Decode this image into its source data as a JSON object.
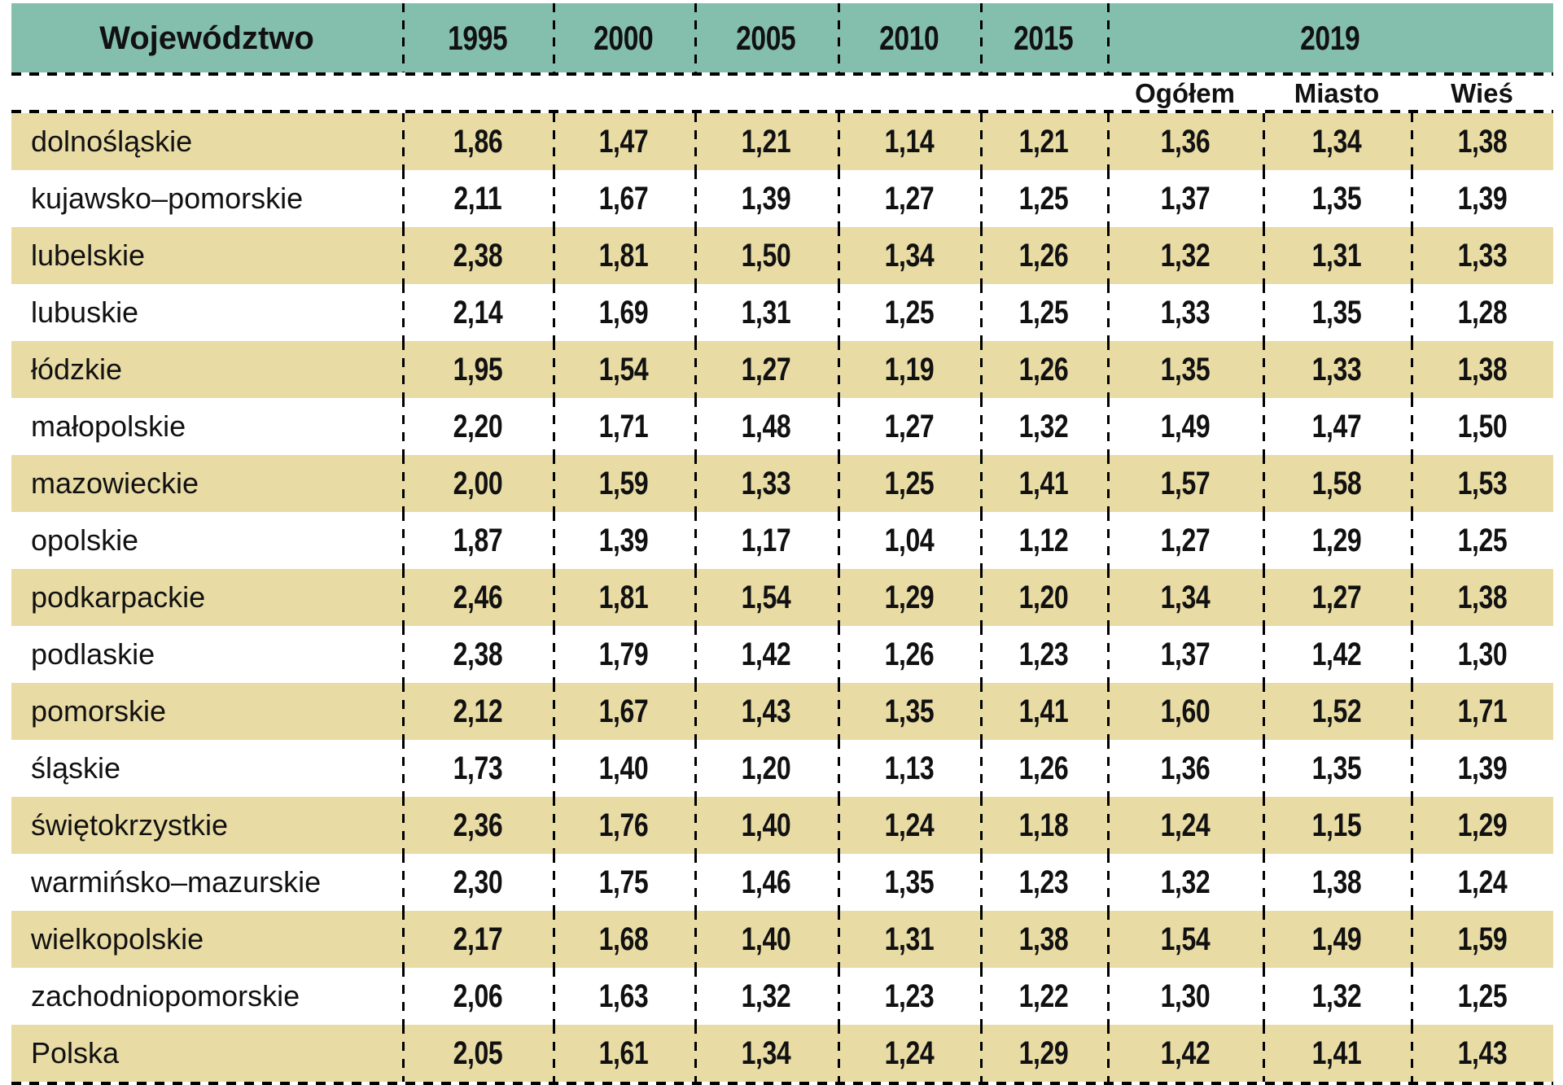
{
  "header": {
    "region_label": "Województwo",
    "years": [
      "1995",
      "2000",
      "2005",
      "2010",
      "2015"
    ],
    "group_2019_label": "2019",
    "subcolumns": [
      "Ogółem",
      "Miasto",
      "Wieś"
    ]
  },
  "colors": {
    "header_bg": "#84bfae",
    "stripe_bg": "#e8dba4",
    "plain_bg": "#ffffff",
    "line": "#000000",
    "text": "#111111"
  },
  "chart_data": {
    "type": "table",
    "columns": [
      "Województwo",
      "1995",
      "2000",
      "2005",
      "2010",
      "2015",
      "2019 Ogółem",
      "2019 Miasto",
      "2019 Wieś"
    ],
    "decimal_separator": ",",
    "rows": [
      {
        "region": "dolnośląskie",
        "values": [
          1.86,
          1.47,
          1.21,
          1.14,
          1.21,
          1.36,
          1.34,
          1.38
        ]
      },
      {
        "region": "kujawsko–pomorskie",
        "values": [
          2.11,
          1.67,
          1.39,
          1.27,
          1.25,
          1.37,
          1.35,
          1.39
        ]
      },
      {
        "region": "lubelskie",
        "values": [
          2.38,
          1.81,
          1.5,
          1.34,
          1.26,
          1.32,
          1.31,
          1.33
        ]
      },
      {
        "region": "lubuskie",
        "values": [
          2.14,
          1.69,
          1.31,
          1.25,
          1.25,
          1.33,
          1.35,
          1.28
        ]
      },
      {
        "region": "łódzkie",
        "values": [
          1.95,
          1.54,
          1.27,
          1.19,
          1.26,
          1.35,
          1.33,
          1.38
        ]
      },
      {
        "region": "małopolskie",
        "values": [
          2.2,
          1.71,
          1.48,
          1.27,
          1.32,
          1.49,
          1.47,
          1.5
        ]
      },
      {
        "region": "mazowieckie",
        "values": [
          2.0,
          1.59,
          1.33,
          1.25,
          1.41,
          1.57,
          1.58,
          1.53
        ]
      },
      {
        "region": "opolskie",
        "values": [
          1.87,
          1.39,
          1.17,
          1.04,
          1.12,
          1.27,
          1.29,
          1.25
        ]
      },
      {
        "region": "podkarpackie",
        "values": [
          2.46,
          1.81,
          1.54,
          1.29,
          1.2,
          1.34,
          1.27,
          1.38
        ]
      },
      {
        "region": "podlaskie",
        "values": [
          2.38,
          1.79,
          1.42,
          1.26,
          1.23,
          1.37,
          1.42,
          1.3
        ]
      },
      {
        "region": "pomorskie",
        "values": [
          2.12,
          1.67,
          1.43,
          1.35,
          1.41,
          1.6,
          1.52,
          1.71
        ]
      },
      {
        "region": "śląskie",
        "values": [
          1.73,
          1.4,
          1.2,
          1.13,
          1.26,
          1.36,
          1.35,
          1.39
        ]
      },
      {
        "region": "świętokrzystkie",
        "values": [
          2.36,
          1.76,
          1.4,
          1.24,
          1.18,
          1.24,
          1.15,
          1.29
        ]
      },
      {
        "region": "warmińsko–mazurskie",
        "values": [
          2.3,
          1.75,
          1.46,
          1.35,
          1.23,
          1.32,
          1.38,
          1.24
        ]
      },
      {
        "region": "wielkopolskie",
        "values": [
          2.17,
          1.68,
          1.4,
          1.31,
          1.38,
          1.54,
          1.49,
          1.59
        ]
      },
      {
        "region": "zachodniopomorskie",
        "values": [
          2.06,
          1.63,
          1.32,
          1.23,
          1.22,
          1.3,
          1.32,
          1.25
        ]
      },
      {
        "region": "Polska",
        "values": [
          2.05,
          1.61,
          1.34,
          1.24,
          1.29,
          1.42,
          1.41,
          1.43
        ]
      }
    ]
  }
}
